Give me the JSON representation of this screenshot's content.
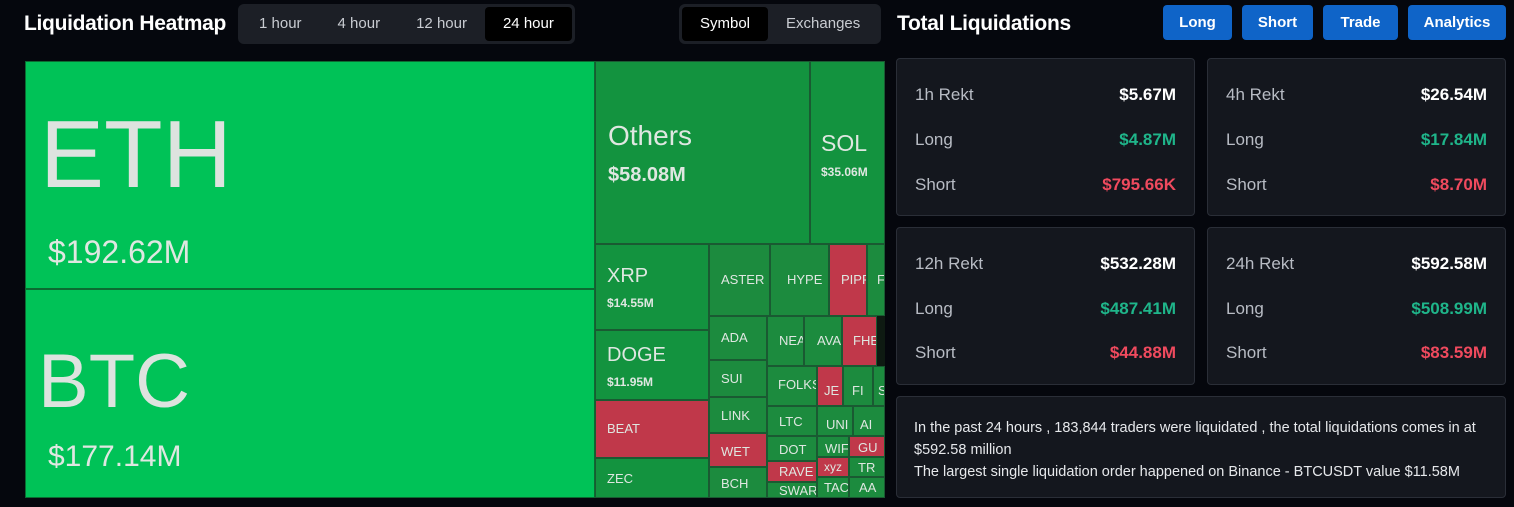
{
  "heatmap": {
    "title": "Liquidation Heatmap",
    "time_options": [
      "1 hour",
      "4 hour",
      "12 hour",
      "24 hour"
    ],
    "time_selected": "24 hour",
    "mode_options": [
      "Symbol",
      "Exchanges"
    ],
    "mode_selected": "Symbol",
    "tiles": [
      {
        "name": "ETH",
        "value": "$192.62M",
        "color": "#00c257",
        "side": "long"
      },
      {
        "name": "BTC",
        "value": "$177.14M",
        "color": "#00c257",
        "side": "long"
      },
      {
        "name": "Others",
        "value": "$58.08M",
        "color": "#13933f",
        "side": "long"
      },
      {
        "name": "SOL",
        "value": "$35.06M",
        "color": "#13933f",
        "side": "long"
      },
      {
        "name": "XRP",
        "value": "$14.55M",
        "color": "#13933f",
        "side": "long"
      },
      {
        "name": "DOGE",
        "value": "$11.95M",
        "color": "#13933f",
        "side": "long"
      },
      {
        "name": "BEAT",
        "value": "",
        "color": "#c0384a",
        "side": "short"
      },
      {
        "name": "ZEC",
        "value": "",
        "color": "#13933f",
        "side": "long"
      },
      {
        "name": "ASTER",
        "value": "",
        "color": "#1c8b3e",
        "side": "long"
      },
      {
        "name": "HYPE",
        "value": "",
        "color": "#1c8b3e",
        "side": "long"
      },
      {
        "name": "PIPP",
        "value": "",
        "color": "#c0384a",
        "side": "short"
      },
      {
        "name": "F",
        "value": "",
        "color": "#1c8b3e",
        "side": "long"
      },
      {
        "name": "ADA",
        "value": "",
        "color": "#1c8b3e",
        "side": "long"
      },
      {
        "name": "NEA",
        "value": "",
        "color": "#1c8b3e",
        "side": "long"
      },
      {
        "name": "AVA",
        "value": "",
        "color": "#1c8b3e",
        "side": "long"
      },
      {
        "name": "FHE",
        "value": "",
        "color": "#c0384a",
        "side": "short"
      },
      {
        "name": "SUI",
        "value": "",
        "color": "#1c8b3e",
        "side": "long"
      },
      {
        "name": "FOLKS",
        "value": "",
        "color": "#1c8b3e",
        "side": "long"
      },
      {
        "name": "JE",
        "value": "",
        "color": "#c0384a",
        "side": "short"
      },
      {
        "name": "FI",
        "value": "",
        "color": "#1c8b3e",
        "side": "long"
      },
      {
        "name": "S",
        "value": "",
        "color": "#1c8b3e",
        "side": "long"
      },
      {
        "name": "LINK",
        "value": "",
        "color": "#1c8b3e",
        "side": "long"
      },
      {
        "name": "LTC",
        "value": "",
        "color": "#1c8b3e",
        "side": "long"
      },
      {
        "name": "UNI",
        "value": "",
        "color": "#1c8b3e",
        "side": "long"
      },
      {
        "name": "AI",
        "value": "",
        "color": "#1c8b3e",
        "side": "long"
      },
      {
        "name": "WET",
        "value": "",
        "color": "#c0384a",
        "side": "short"
      },
      {
        "name": "DOT",
        "value": "",
        "color": "#1c8b3e",
        "side": "long"
      },
      {
        "name": "WIF",
        "value": "",
        "color": "#1c8b3e",
        "side": "long"
      },
      {
        "name": "GU",
        "value": "",
        "color": "#c0384a",
        "side": "short"
      },
      {
        "name": "RAVE",
        "value": "",
        "color": "#c0384a",
        "side": "short"
      },
      {
        "name": "xyz",
        "value": "",
        "color": "#c0384a",
        "side": "short"
      },
      {
        "name": "TR",
        "value": "",
        "color": "#1c8b3e",
        "side": "long"
      },
      {
        "name": "BCH",
        "value": "",
        "color": "#1c8b3e",
        "side": "long"
      },
      {
        "name": "SWAR",
        "value": "",
        "color": "#1c8b3e",
        "side": "long"
      },
      {
        "name": "TAC",
        "value": "",
        "color": "#1c8b3e",
        "side": "long"
      },
      {
        "name": "AA",
        "value": "",
        "color": "#1c8b3e",
        "side": "long"
      }
    ]
  },
  "totals": {
    "title": "Total Liquidations",
    "buttons": [
      "Long",
      "Short",
      "Trade",
      "Analytics"
    ],
    "cards": [
      {
        "label": "1h Rekt",
        "total": "$5.67M",
        "long_label": "Long",
        "long": "$4.87M",
        "short_label": "Short",
        "short": "$795.66K"
      },
      {
        "label": "4h Rekt",
        "total": "$26.54M",
        "long_label": "Long",
        "long": "$17.84M",
        "short_label": "Short",
        "short": "$8.70M"
      },
      {
        "label": "12h Rekt",
        "total": "$532.28M",
        "long_label": "Long",
        "long": "$487.41M",
        "short_label": "Short",
        "short": "$44.88M"
      },
      {
        "label": "24h Rekt",
        "total": "$592.58M",
        "long_label": "Long",
        "long": "$508.99M",
        "short_label": "Short",
        "short": "$83.59M"
      }
    ],
    "summary_line1": "In the past 24 hours , 183,844 traders were liquidated , the total liquidations comes in at $592.58 million",
    "summary_line2": "The largest single liquidation order happened on Binance - BTCUSDT value $11.58M"
  },
  "colors": {
    "accent_button": "#0f64c8",
    "long_green": "#1fb58a",
    "short_red": "#f04a5e"
  }
}
